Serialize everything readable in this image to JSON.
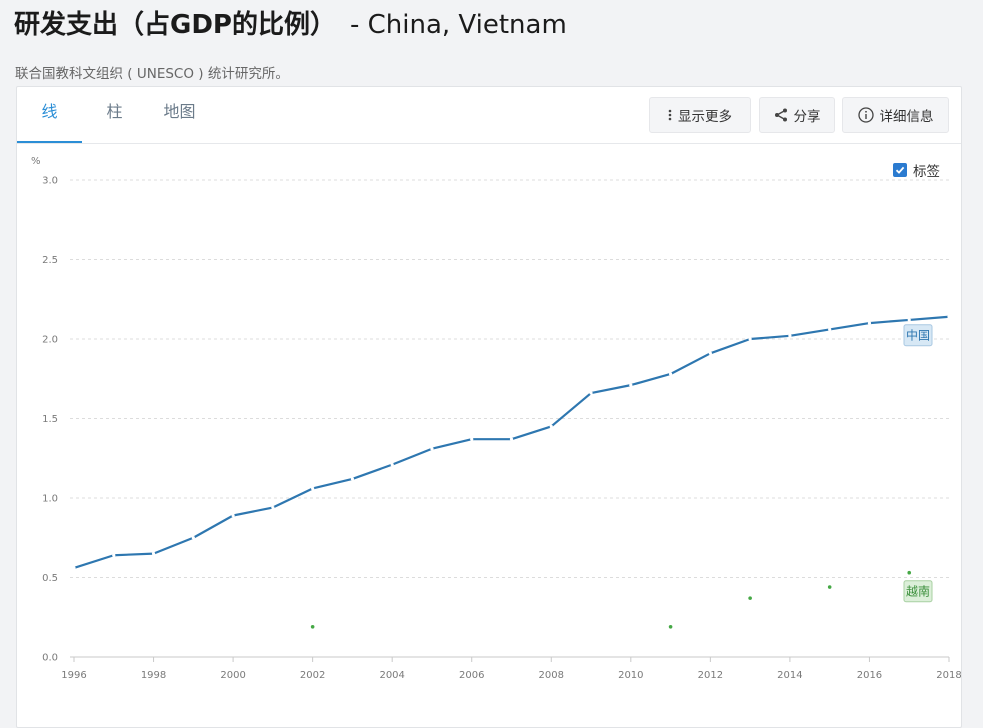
{
  "header": {
    "title_main": "研发支出（占GDP的比例）",
    "title_countries": "- China, Vietnam",
    "source": "联合国教科文组织 ( UNESCO ) 统计研究所。"
  },
  "tabs": [
    {
      "label": "线",
      "active": true
    },
    {
      "label": "柱",
      "active": false
    },
    {
      "label": "地图",
      "active": false
    }
  ],
  "toolbar": {
    "more_label": "显示更多",
    "share_label": "分享",
    "details_label": "详细信息",
    "labels_toggle": "标签",
    "labels_checked": true
  },
  "chart_data": {
    "type": "line",
    "ylabel": "%",
    "ylim": [
      0,
      3.0
    ],
    "yticks": [
      "0.0",
      "0.5",
      "1.0",
      "1.5",
      "2.0",
      "2.5",
      "3.0"
    ],
    "xlim": [
      1996,
      2018
    ],
    "xticks": [
      "1996",
      "1998",
      "2000",
      "2002",
      "2004",
      "2006",
      "2008",
      "2010",
      "2012",
      "2014",
      "2016",
      "2018"
    ],
    "grid": true,
    "series": [
      {
        "name": "中国",
        "color": "#2e77b0",
        "mode": "line",
        "label_bg": "#d7e8f5",
        "label_border": "#a9c8e2",
        "label_color": "#2e77b0",
        "x": [
          1996,
          1997,
          1998,
          1999,
          2000,
          2001,
          2002,
          2003,
          2004,
          2005,
          2006,
          2007,
          2008,
          2009,
          2010,
          2011,
          2012,
          2013,
          2014,
          2015,
          2016,
          2017,
          2018
        ],
        "values": [
          0.56,
          0.64,
          0.65,
          0.75,
          0.89,
          0.94,
          1.06,
          1.12,
          1.21,
          1.31,
          1.37,
          1.37,
          1.45,
          1.66,
          1.71,
          1.78,
          1.91,
          2.0,
          2.02,
          2.06,
          2.1,
          2.12,
          2.14
        ]
      },
      {
        "name": "越南",
        "color": "#45a845",
        "mode": "points",
        "label_bg": "#dcefd9",
        "label_border": "#a8d0a2",
        "label_color": "#3b8f3b",
        "x": [
          2002,
          2011,
          2013,
          2015,
          2017
        ],
        "values": [
          0.19,
          0.19,
          0.37,
          0.44,
          0.53
        ]
      }
    ]
  }
}
